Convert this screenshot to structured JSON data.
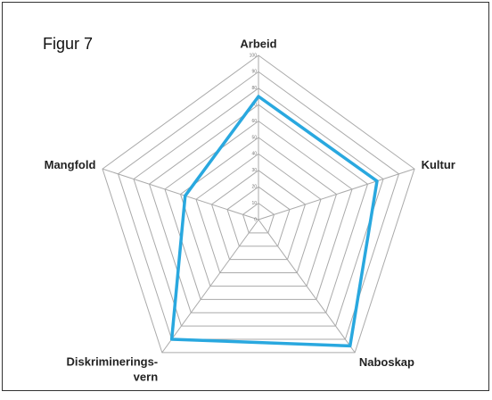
{
  "chart_data": {
    "type": "radar",
    "title": "Figur 7",
    "categories": [
      "Arbeid",
      "Kultur",
      "Naboskap",
      "Diskriminerings-\nvern",
      "Mangfold"
    ],
    "series": [
      {
        "color": "#29a8df",
        "values": [
          75,
          76,
          95,
          90,
          47
        ]
      }
    ],
    "rlim": [
      0,
      100
    ],
    "rticks": [
      0,
      10,
      20,
      30,
      40,
      50,
      60,
      70,
      80,
      90,
      100
    ],
    "grid": true
  }
}
